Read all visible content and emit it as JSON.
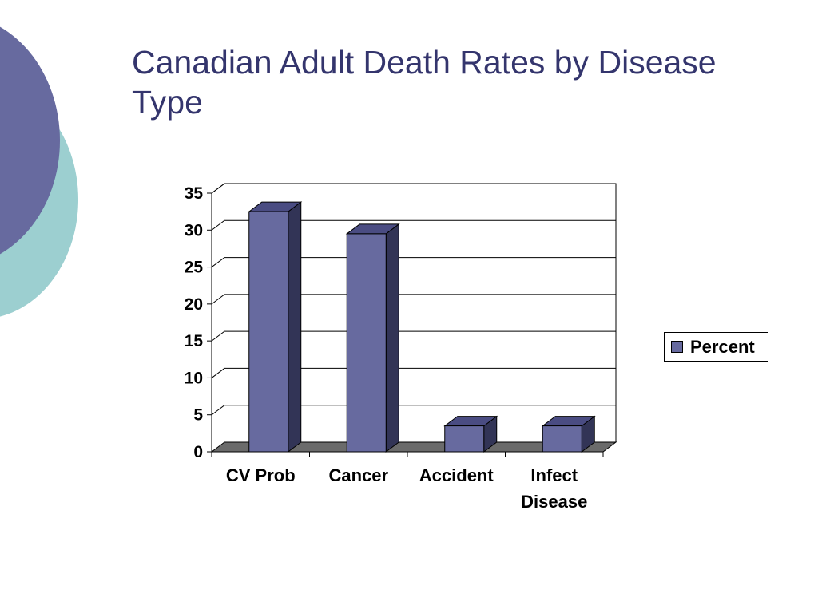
{
  "slide": {
    "title": "Canadian Adult Death Rates by Disease Type"
  },
  "chart_data": {
    "type": "bar",
    "style": "3d-column",
    "categories": [
      "CV Prob",
      "Cancer",
      "Accident",
      "Infect Disease"
    ],
    "series": [
      {
        "name": "Percent",
        "values": [
          32.5,
          29.5,
          3.5,
          3.5
        ]
      }
    ],
    "ylim": [
      0,
      35
    ],
    "yticks": [
      "0",
      "5",
      "10",
      "15",
      "20",
      "25",
      "30",
      "35"
    ],
    "grid": true,
    "legend": "right",
    "colors": {
      "bar_front": "#676a9f",
      "bar_top": "#4a4c82",
      "bar_side": "#323456",
      "floor": "#6b6b6b"
    }
  },
  "theme": {
    "title_color": "#34356d",
    "decor_purple": "#676a9f",
    "decor_teal": "#9ccfd0"
  }
}
